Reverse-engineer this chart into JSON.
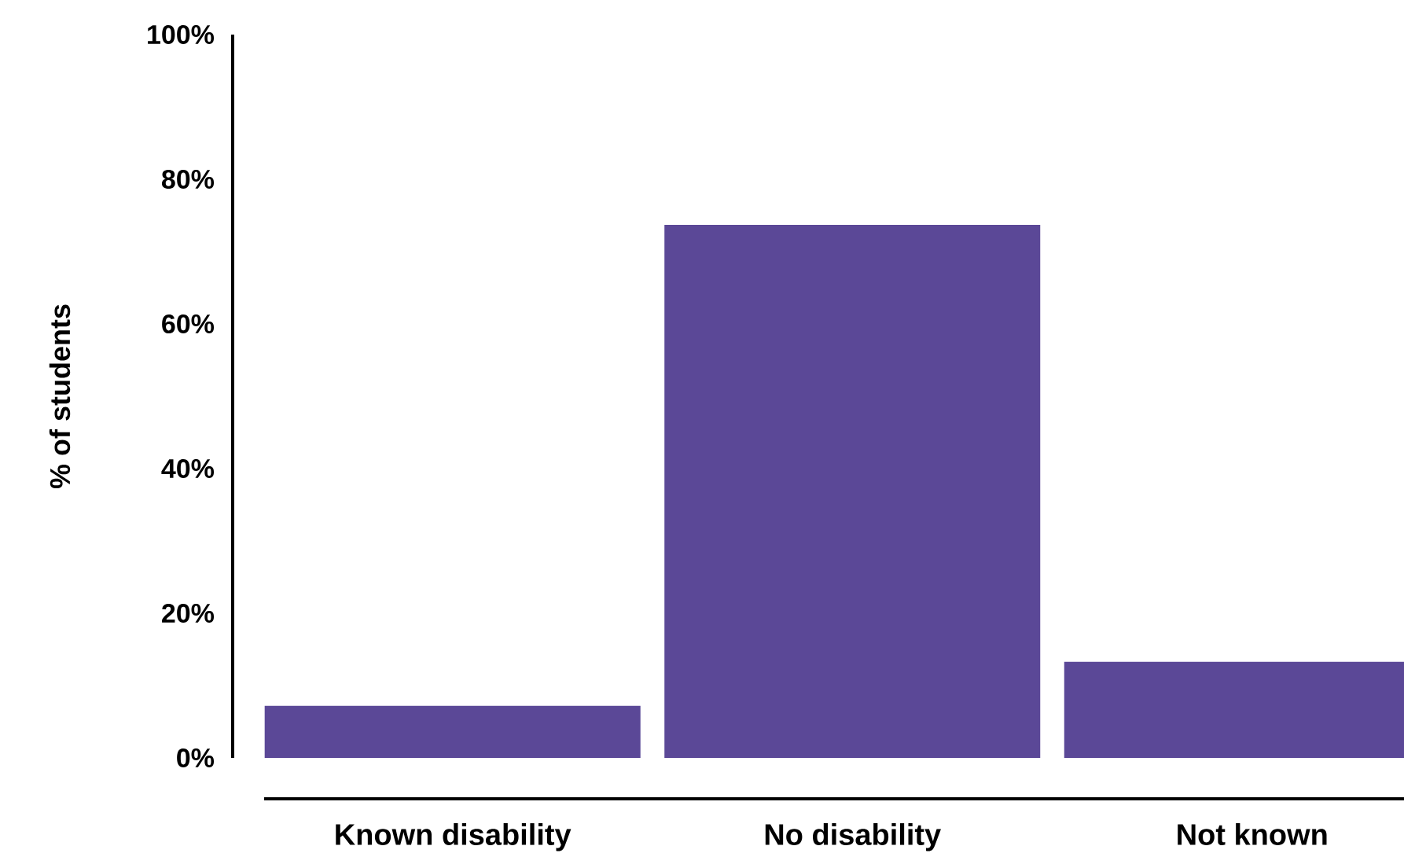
{
  "chart_data": {
    "type": "bar",
    "ylabel": "% of students",
    "categories": [
      "Known disability",
      "No disability",
      "Not known"
    ],
    "values": [
      7.2,
      73.7,
      13.3
    ],
    "color": "#5b4897",
    "ylim": [
      0,
      100
    ],
    "yticks": [
      {
        "value": 0,
        "label": "0%"
      },
      {
        "value": 20,
        "label": "20%"
      },
      {
        "value": 40,
        "label": "40%"
      },
      {
        "value": 60,
        "label": "60%"
      },
      {
        "value": 80,
        "label": "80%"
      },
      {
        "value": 100,
        "label": "100%"
      }
    ],
    "grid": false
  }
}
